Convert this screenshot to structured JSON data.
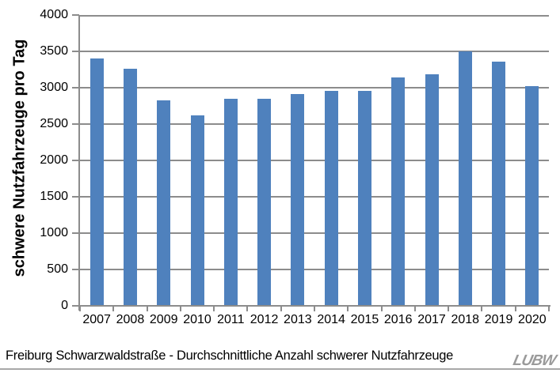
{
  "chart_data": {
    "type": "bar",
    "title": "",
    "categories": [
      "2007",
      "2008",
      "2009",
      "2010",
      "2011",
      "2012",
      "2013",
      "2014",
      "2015",
      "2016",
      "2017",
      "2018",
      "2019",
      "2020"
    ],
    "values": [
      3400,
      3260,
      2830,
      2620,
      2845,
      2850,
      2910,
      2960,
      2960,
      3140,
      3190,
      3500,
      3360,
      3020
    ],
    "xlabel": "",
    "ylabel": "schwere Nutzfahrzeuge pro Tag",
    "ylim": [
      0,
      4000
    ],
    "yticks": [
      0,
      500,
      1000,
      1500,
      2000,
      2500,
      3000,
      3500,
      4000
    ],
    "grid": true,
    "legend": false,
    "bar_color": "#4F81BD",
    "axis_color": "#8C8C8C",
    "gridline_color": "#8C8C8C"
  },
  "caption": "Freiburg Schwarzwaldstraße - Durchschnittliche Anzahl schwerer Nutzfahrzeuge",
  "logo": {
    "text": "LUBW",
    "color": "#9A9A9A"
  }
}
